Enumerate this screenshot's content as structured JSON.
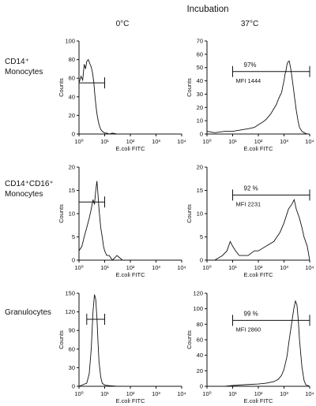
{
  "figure": {
    "title": "Incubation",
    "columns": [
      "0°C",
      "37°C"
    ],
    "rows": [
      {
        "label_lines": [
          "CD14⁺",
          "Monocytes"
        ]
      },
      {
        "label_lines": [
          "CD14⁺CD16⁺",
          "Monocytes"
        ]
      },
      {
        "label_lines": [
          "Granulocytes"
        ]
      }
    ]
  },
  "colors": {
    "ink": "#111111",
    "background": "#ffffff"
  },
  "chart_data": [
    {
      "type": "line",
      "row": 0,
      "col": 0,
      "xlabel": "E.coli FITC",
      "ylabel": "Counts",
      "xscale": "log",
      "xlim": [
        1,
        10000
      ],
      "ylim": [
        0,
        100
      ],
      "xticks": [
        "10⁰",
        "10¹",
        "10²",
        "10³",
        "10⁴"
      ],
      "yticks": [
        "0",
        "20",
        "40",
        "60",
        "80",
        "100"
      ],
      "gate": {
        "x_start": 1,
        "x_end": 10,
        "y": 55
      },
      "x": [
        1.0,
        1.2,
        1.4,
        1.6,
        1.8,
        2.0,
        2.3,
        2.6,
        3.0,
        3.4,
        3.8,
        4.2,
        4.6,
        5.0,
        5.6,
        6.2,
        7,
        8,
        9,
        10,
        12,
        15,
        20,
        30,
        100,
        1000,
        10000
      ],
      "y": [
        55,
        62,
        58,
        75,
        70,
        78,
        80,
        76,
        72,
        65,
        55,
        40,
        30,
        22,
        14,
        9,
        5,
        3,
        2,
        1,
        1,
        0,
        1,
        0,
        0,
        0,
        0
      ]
    },
    {
      "type": "line",
      "row": 0,
      "col": 1,
      "xlabel": "E.coli FITC",
      "ylabel": "Counts",
      "xscale": "log",
      "xlim": [
        1,
        10000
      ],
      "ylim": [
        0,
        70
      ],
      "xticks": [
        "10⁰",
        "10¹",
        "10²",
        "10³",
        "10⁴"
      ],
      "yticks": [
        "0",
        "10",
        "20",
        "30",
        "40",
        "50",
        "60",
        "70"
      ],
      "gate": {
        "x_start": 10,
        "x_end": 10000,
        "y": 47,
        "percent": "97%",
        "mfi": "MFI  1444"
      },
      "x": [
        1,
        2,
        5,
        10,
        20,
        40,
        70,
        100,
        150,
        200,
        300,
        400,
        500,
        600,
        700,
        800,
        900,
        1000,
        1100,
        1200,
        1300,
        1400,
        1600,
        1800,
        2000,
        2300,
        2600,
        3000,
        3500,
        4000,
        5000,
        6000,
        8000,
        10000
      ],
      "y": [
        2,
        1,
        2,
        2,
        3,
        4,
        5,
        7,
        9,
        11,
        15,
        19,
        22,
        26,
        29,
        31,
        36,
        40,
        45,
        48,
        52,
        54,
        55,
        50,
        44,
        35,
        27,
        18,
        10,
        5,
        2,
        1,
        0,
        0
      ]
    },
    {
      "type": "line",
      "row": 1,
      "col": 0,
      "xlabel": "E.coli FITC",
      "ylabel": "Counts",
      "xscale": "log",
      "xlim": [
        1,
        10000
      ],
      "ylim": [
        0,
        20
      ],
      "xticks": [
        "10⁰",
        "10¹",
        "10²",
        "10³",
        "10⁴"
      ],
      "yticks": [
        "0",
        "5",
        "10",
        "15",
        "20"
      ],
      "gate": {
        "x_start": 1,
        "x_end": 10,
        "y": 12.5
      },
      "x": [
        1,
        1.3,
        1.6,
        2,
        2.5,
        3,
        3.5,
        4,
        4.5,
        5,
        5.5,
        6,
        6.5,
        7,
        8,
        9,
        10,
        12,
        15,
        20,
        30,
        50,
        100,
        1000,
        10000
      ],
      "y": [
        2,
        3,
        5,
        7,
        9,
        11,
        13,
        12,
        15,
        17,
        14,
        11,
        9,
        7,
        5,
        3,
        2,
        1,
        1,
        0,
        1,
        0,
        0,
        0,
        0
      ]
    },
    {
      "type": "line",
      "row": 1,
      "col": 1,
      "xlabel": "E.coli FITC",
      "ylabel": "Counts",
      "xscale": "log",
      "xlim": [
        1,
        10000
      ],
      "ylim": [
        0,
        20
      ],
      "xticks": [
        "10⁰",
        "10¹",
        "10²",
        "10³",
        "10⁴"
      ],
      "yticks": [
        "0",
        "5",
        "10",
        "15",
        "20"
      ],
      "gate": {
        "x_start": 10,
        "x_end": 10000,
        "y": 14,
        "percent": "92 %",
        "mfi": "MFI  2231"
      },
      "x": [
        1,
        2,
        4,
        6,
        8,
        10,
        13,
        18,
        25,
        40,
        70,
        100,
        200,
        400,
        700,
        1000,
        1500,
        2000,
        2500,
        3000,
        4000,
        5000,
        6000,
        8000,
        10000
      ],
      "y": [
        0,
        0,
        1,
        2,
        4,
        3,
        2,
        1,
        1,
        1,
        2,
        2,
        3,
        4,
        6,
        8,
        11,
        12,
        13,
        11,
        9,
        7,
        5,
        3,
        0
      ]
    },
    {
      "type": "line",
      "row": 2,
      "col": 0,
      "xlabel": "E.coli FITC",
      "ylabel": "Counts",
      "xscale": "log",
      "xlim": [
        1,
        10000
      ],
      "ylim": [
        0,
        150
      ],
      "xticks": [
        "10⁰",
        "10¹",
        "10²",
        "10³",
        "10⁴"
      ],
      "yticks": [
        "0",
        "30",
        "60",
        "90",
        "120",
        "150"
      ],
      "gate": {
        "x_start": 2,
        "x_end": 10,
        "y": 108
      },
      "x": [
        1,
        2,
        2.5,
        3,
        3.5,
        4,
        4.5,
        5,
        5.5,
        6,
        7,
        8,
        10,
        15,
        30,
        100,
        1000,
        10000
      ],
      "y": [
        0,
        5,
        20,
        60,
        120,
        148,
        140,
        110,
        70,
        40,
        15,
        5,
        2,
        1,
        0,
        0,
        0,
        0
      ]
    },
    {
      "type": "line",
      "row": 2,
      "col": 1,
      "xlabel": "E.coli FITC",
      "ylabel": "Counts",
      "xscale": "log",
      "xlim": [
        1,
        10000
      ],
      "ylim": [
        0,
        120
      ],
      "xticks": [
        "10⁰",
        "10¹",
        "10²",
        "10³",
        "10⁴"
      ],
      "yticks": [
        "0",
        "20",
        "40",
        "60",
        "80",
        "100",
        "120"
      ],
      "gate": {
        "x_start": 10,
        "x_end": 10000,
        "y": 85,
        "percent": "99 %",
        "mfi": "MFI  2860"
      },
      "x": [
        1,
        5,
        10,
        30,
        100,
        200,
        400,
        600,
        800,
        1000,
        1300,
        1600,
        2000,
        2400,
        2800,
        3200,
        3600,
        4000,
        5000,
        6000,
        7000,
        10000
      ],
      "y": [
        0,
        0,
        1,
        2,
        3,
        4,
        6,
        9,
        14,
        22,
        38,
        60,
        82,
        100,
        110,
        105,
        85,
        60,
        25,
        8,
        2,
        0
      ]
    }
  ]
}
